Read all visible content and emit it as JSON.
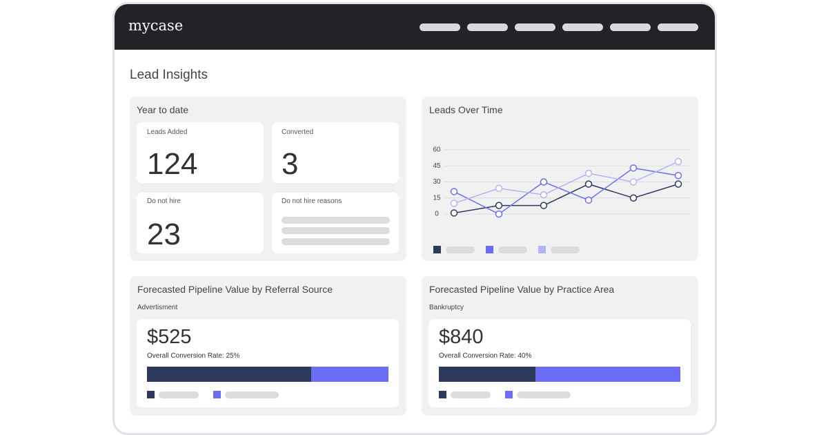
{
  "header": {
    "brand": "mycase"
  },
  "page_title": "Lead Insights",
  "year_to_date": {
    "title": "Year to date",
    "stats": [
      {
        "label": "Leads Added",
        "value": 124
      },
      {
        "label": "Converted",
        "value": 3
      },
      {
        "label": "Do not hire",
        "value": 23
      }
    ],
    "reasons_title": "Do not hire reasons"
  },
  "chart_data": {
    "type": "line",
    "title": "Leads Over Time",
    "ylim": [
      0,
      60
    ],
    "yticks": [
      0,
      15,
      30,
      45,
      60
    ],
    "grid": true,
    "series": [
      {
        "color": "#2d3a5c",
        "values": [
          1,
          8,
          8,
          28,
          15,
          28
        ]
      },
      {
        "color": "#6b6ef5",
        "values": [
          21,
          0,
          30,
          13,
          43,
          36
        ]
      },
      {
        "color": "#b3b3f5",
        "values": [
          10,
          24,
          18,
          38,
          30,
          49
        ]
      }
    ]
  },
  "pipelines": [
    {
      "title": "Forecasted Pipeline Value by Referral Source",
      "subtitle": "Advertisment",
      "amount": "$525",
      "rate_label": "Overall Conversion Rate: 25%",
      "bar": {
        "values": [
          68,
          32
        ],
        "colors": [
          "#2d3a5c",
          "#6b6ef5"
        ]
      }
    },
    {
      "title": "Forecasted Pipeline Value by Practice Area",
      "subtitle": "Bankruptcy",
      "amount": "$840",
      "rate_label": "Overall Conversion Rate: 40%",
      "bar": {
        "values": [
          40,
          60
        ],
        "colors": [
          "#2d3a5c",
          "#6b6ef5"
        ]
      }
    }
  ]
}
